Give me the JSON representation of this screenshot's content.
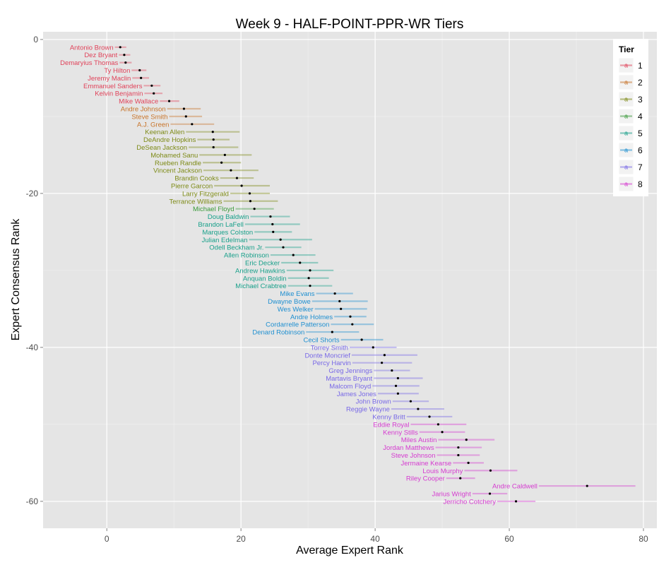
{
  "chart_data": {
    "type": "scatter",
    "title": "Week 9 - HALF-POINT-PPR-WR Tiers",
    "xlabel": "Average Expert Rank",
    "ylabel": "Expert Consensus Rank",
    "xlim": [
      -9.5,
      82
    ],
    "ylim": [
      -63.5,
      1
    ],
    "x_ticks": [
      0,
      20,
      40,
      60,
      80
    ],
    "y_ticks": [
      0,
      -20,
      -40,
      -60
    ],
    "grid": true,
    "legend": {
      "title": "Tier",
      "position": "top-right",
      "key_letter": "a",
      "tiers": [
        {
          "label": "1",
          "color": "#e0435a"
        },
        {
          "label": "2",
          "color": "#c8742a"
        },
        {
          "label": "3",
          "color": "#7d8a16"
        },
        {
          "label": "4",
          "color": "#3a9a3a"
        },
        {
          "label": "5",
          "color": "#19a08a"
        },
        {
          "label": "6",
          "color": "#1e8fd0"
        },
        {
          "label": "7",
          "color": "#7868e6"
        },
        {
          "label": "8",
          "color": "#d53bd0"
        }
      ]
    },
    "series": [
      {
        "name": "Antonio Brown",
        "tier": 1,
        "rank": -1,
        "x": 2.0,
        "lo": 1.2,
        "hi": 2.9
      },
      {
        "name": "Dez Bryant",
        "tier": 1,
        "rank": -2,
        "x": 2.6,
        "lo": 1.8,
        "hi": 3.5
      },
      {
        "name": "Demaryius Thomas",
        "tier": 1,
        "rank": -3,
        "x": 2.8,
        "lo": 1.9,
        "hi": 3.7
      },
      {
        "name": "Ty Hilton",
        "tier": 1,
        "rank": -4,
        "x": 4.9,
        "lo": 3.7,
        "hi": 5.9
      },
      {
        "name": "Jeremy Maclin",
        "tier": 1,
        "rank": -5,
        "x": 5.1,
        "lo": 3.8,
        "hi": 6.3
      },
      {
        "name": "Emmanuel Sanders",
        "tier": 1,
        "rank": -6,
        "x": 6.7,
        "lo": 5.5,
        "hi": 8.0
      },
      {
        "name": "Kelvin Benjamin",
        "tier": 1,
        "rank": -7,
        "x": 7.0,
        "lo": 5.6,
        "hi": 8.3
      },
      {
        "name": "Mike Wallace",
        "tier": 1,
        "rank": -8,
        "x": 9.3,
        "lo": 7.9,
        "hi": 10.8
      },
      {
        "name": "Andre Johnson",
        "tier": 2,
        "rank": -9,
        "x": 11.5,
        "lo": 9.0,
        "hi": 14.0
      },
      {
        "name": "Steve Smith",
        "tier": 2,
        "rank": -10,
        "x": 11.8,
        "lo": 9.3,
        "hi": 14.2
      },
      {
        "name": "A.J. Green",
        "tier": 2,
        "rank": -11,
        "x": 12.7,
        "lo": 9.5,
        "hi": 16.0
      },
      {
        "name": "Keenan Allen",
        "tier": 3,
        "rank": -12,
        "x": 15.8,
        "lo": 11.8,
        "hi": 19.8
      },
      {
        "name": "DeAndre Hopkins",
        "tier": 3,
        "rank": -13,
        "x": 15.9,
        "lo": 13.5,
        "hi": 18.3
      },
      {
        "name": "DeSean Jackson",
        "tier": 3,
        "rank": -14,
        "x": 15.9,
        "lo": 12.2,
        "hi": 19.6
      },
      {
        "name": "Mohamed Sanu",
        "tier": 3,
        "rank": -15,
        "x": 17.6,
        "lo": 13.8,
        "hi": 21.6
      },
      {
        "name": "Rueben Randle",
        "tier": 3,
        "rank": -16,
        "x": 17.1,
        "lo": 14.3,
        "hi": 20.0
      },
      {
        "name": "Vincent Jackson",
        "tier": 3,
        "rank": -17,
        "x": 18.5,
        "lo": 14.4,
        "hi": 22.6
      },
      {
        "name": "Brandin Cooks",
        "tier": 3,
        "rank": -18,
        "x": 19.4,
        "lo": 16.9,
        "hi": 21.9
      },
      {
        "name": "Pierre Garcon",
        "tier": 3,
        "rank": -19,
        "x": 20.1,
        "lo": 16.0,
        "hi": 24.3
      },
      {
        "name": "Larry Fitzgerald",
        "tier": 3,
        "rank": -20,
        "x": 21.3,
        "lo": 18.4,
        "hi": 24.3
      },
      {
        "name": "Terrance Williams",
        "tier": 3,
        "rank": -21,
        "x": 21.4,
        "lo": 17.4,
        "hi": 25.5
      },
      {
        "name": "Michael Floyd",
        "tier": 4,
        "rank": -22,
        "x": 22.0,
        "lo": 19.2,
        "hi": 24.9
      },
      {
        "name": "Doug Baldwin",
        "tier": 5,
        "rank": -23,
        "x": 24.4,
        "lo": 21.4,
        "hi": 27.3
      },
      {
        "name": "Brandon LaFell",
        "tier": 5,
        "rank": -24,
        "x": 24.7,
        "lo": 20.6,
        "hi": 28.8
      },
      {
        "name": "Marques Colston",
        "tier": 5,
        "rank": -25,
        "x": 24.8,
        "lo": 22.0,
        "hi": 27.6
      },
      {
        "name": "Julian Edelman",
        "tier": 5,
        "rank": -26,
        "x": 25.9,
        "lo": 21.2,
        "hi": 30.6
      },
      {
        "name": "Odell Beckham Jr.",
        "tier": 5,
        "rank": -27,
        "x": 26.3,
        "lo": 23.6,
        "hi": 29.0
      },
      {
        "name": "Allen Robinson",
        "tier": 5,
        "rank": -28,
        "x": 27.8,
        "lo": 24.4,
        "hi": 31.1
      },
      {
        "name": "Eric Decker",
        "tier": 5,
        "rank": -29,
        "x": 28.8,
        "lo": 26.0,
        "hi": 31.5
      },
      {
        "name": "Andrew Hawkins",
        "tier": 5,
        "rank": -30,
        "x": 30.3,
        "lo": 26.8,
        "hi": 33.8
      },
      {
        "name": "Anquan Boldin",
        "tier": 5,
        "rank": -31,
        "x": 30.1,
        "lo": 27.0,
        "hi": 33.1
      },
      {
        "name": "Michael Crabtree",
        "tier": 5,
        "rank": -32,
        "x": 30.3,
        "lo": 27.0,
        "hi": 33.6
      },
      {
        "name": "Mike Evans",
        "tier": 6,
        "rank": -33,
        "x": 34.0,
        "lo": 31.2,
        "hi": 36.7
      },
      {
        "name": "Dwayne Bowe",
        "tier": 6,
        "rank": -34,
        "x": 34.7,
        "lo": 30.6,
        "hi": 38.9
      },
      {
        "name": "Wes Welker",
        "tier": 6,
        "rank": -35,
        "x": 34.9,
        "lo": 31.0,
        "hi": 38.8
      },
      {
        "name": "Andre Holmes",
        "tier": 6,
        "rank": -36,
        "x": 36.3,
        "lo": 33.9,
        "hi": 38.7
      },
      {
        "name": "Cordarrelle Patterson",
        "tier": 6,
        "rank": -37,
        "x": 36.6,
        "lo": 33.4,
        "hi": 39.8
      },
      {
        "name": "Denard Robinson",
        "tier": 6,
        "rank": -38,
        "x": 33.6,
        "lo": 29.7,
        "hi": 37.6
      },
      {
        "name": "Cecil Shorts",
        "tier": 6,
        "rank": -39,
        "x": 38.0,
        "lo": 34.9,
        "hi": 41.2
      },
      {
        "name": "Torrey Smith",
        "tier": 7,
        "rank": -40,
        "x": 39.7,
        "lo": 36.2,
        "hi": 43.2
      },
      {
        "name": "Donte Moncrief",
        "tier": 7,
        "rank": -41,
        "x": 41.4,
        "lo": 36.5,
        "hi": 46.3
      },
      {
        "name": "Percy Harvin",
        "tier": 7,
        "rank": -42,
        "x": 41.0,
        "lo": 36.6,
        "hi": 45.5
      },
      {
        "name": "Greg Jennings",
        "tier": 7,
        "rank": -43,
        "x": 42.5,
        "lo": 39.8,
        "hi": 45.2
      },
      {
        "name": "Martavis Bryant",
        "tier": 7,
        "rank": -44,
        "x": 43.4,
        "lo": 39.8,
        "hi": 47.1
      },
      {
        "name": "Malcom Floyd",
        "tier": 7,
        "rank": -45,
        "x": 43.1,
        "lo": 39.6,
        "hi": 46.6
      },
      {
        "name": "James Jones",
        "tier": 7,
        "rank": -46,
        "x": 43.4,
        "lo": 40.4,
        "hi": 46.5
      },
      {
        "name": "John Brown",
        "tier": 7,
        "rank": -47,
        "x": 45.3,
        "lo": 42.6,
        "hi": 48.0
      },
      {
        "name": "Reggie Wayne",
        "tier": 7,
        "rank": -48,
        "x": 46.4,
        "lo": 42.4,
        "hi": 50.3
      },
      {
        "name": "Kenny Britt",
        "tier": 7,
        "rank": -49,
        "x": 48.1,
        "lo": 44.7,
        "hi": 51.5
      },
      {
        "name": "Eddie Royal",
        "tier": 8,
        "rank": -50,
        "x": 49.4,
        "lo": 45.3,
        "hi": 53.6
      },
      {
        "name": "Kenny Stills",
        "tier": 8,
        "rank": -51,
        "x": 50.0,
        "lo": 46.6,
        "hi": 53.4
      },
      {
        "name": "Miles Austin",
        "tier": 8,
        "rank": -52,
        "x": 53.6,
        "lo": 49.4,
        "hi": 57.8
      },
      {
        "name": "Jordan Matthews",
        "tier": 8,
        "rank": -53,
        "x": 52.4,
        "lo": 49.0,
        "hi": 55.9
      },
      {
        "name": "Steve Johnson",
        "tier": 8,
        "rank": -54,
        "x": 52.4,
        "lo": 49.2,
        "hi": 55.6
      },
      {
        "name": "Jermaine Kearse",
        "tier": 8,
        "rank": -55,
        "x": 53.9,
        "lo": 51.6,
        "hi": 56.2
      },
      {
        "name": "Louis Murphy",
        "tier": 8,
        "rank": -56,
        "x": 57.2,
        "lo": 53.3,
        "hi": 61.2
      },
      {
        "name": "Riley Cooper",
        "tier": 8,
        "rank": -57,
        "x": 52.7,
        "lo": 50.6,
        "hi": 54.9
      },
      {
        "name": "Andre Caldwell",
        "tier": 8,
        "rank": -58,
        "x": 71.6,
        "lo": 64.4,
        "hi": 78.8
      },
      {
        "name": "Jarius Wright",
        "tier": 8,
        "rank": -59,
        "x": 57.1,
        "lo": 54.5,
        "hi": 59.7
      },
      {
        "name": "Jerricho Cotchery",
        "tier": 8,
        "rank": -60,
        "x": 61.0,
        "lo": 58.2,
        "hi": 63.9
      }
    ]
  }
}
